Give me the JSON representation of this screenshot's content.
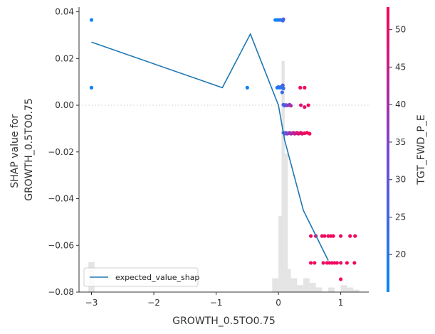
{
  "chart_data": {
    "type": "scatter",
    "xlabel": "GROWTH_0.5TO0.75",
    "ylabel_lines": [
      "SHAP value for",
      "GROWTH_0.5TO0.75"
    ],
    "xlim": [
      -3.2,
      1.45
    ],
    "ylim": [
      -0.08,
      0.042
    ],
    "x_ticks": [
      -3,
      -2,
      -1,
      0,
      1
    ],
    "x_tick_labels": [
      "−3",
      "−2",
      "−1",
      "0",
      "1"
    ],
    "y_ticks": [
      0.04,
      0.02,
      0.0,
      -0.02,
      -0.04,
      -0.06,
      -0.08
    ],
    "y_tick_labels": [
      "0.04",
      "0.02",
      "0.00",
      "−0.02",
      "−0.04",
      "−0.06",
      "−0.08"
    ],
    "zero_line": true,
    "colorbar": {
      "label": "TGT_FWD_P_E",
      "range": [
        15,
        53
      ],
      "ticks": [
        20,
        25,
        30,
        35,
        40,
        45,
        50
      ],
      "tick_labels": [
        "20",
        "25",
        "30",
        "35",
        "40",
        "45",
        "50"
      ],
      "color_low": "#008afb",
      "color_high": "#ff0052"
    },
    "legend": {
      "placement": "lower-left",
      "entries": [
        "expected_value_shap"
      ]
    },
    "series": [
      {
        "name": "expected_value_shap",
        "kind": "line",
        "color": "#1f77b4",
        "x": [
          -3.0,
          -0.9,
          -0.45,
          0.0,
          0.1,
          0.4,
          0.8
        ],
        "y": [
          0.027,
          0.0075,
          0.0305,
          0.0,
          -0.015,
          -0.045,
          -0.0665
        ]
      }
    ],
    "histogram": {
      "color": "#e4e4e4",
      "bins": [
        {
          "x0": -3.05,
          "x1": -2.95,
          "count": 0.13
        },
        {
          "x0": -0.1,
          "x1": 0.0,
          "count": 0.06
        },
        {
          "x0": 0.0,
          "x1": 0.05,
          "count": 0.33
        },
        {
          "x0": 0.05,
          "x1": 0.1,
          "count": 1.0
        },
        {
          "x0": 0.1,
          "x1": 0.15,
          "count": 0.6
        },
        {
          "x0": 0.15,
          "x1": 0.2,
          "count": 0.1
        },
        {
          "x0": 0.2,
          "x1": 0.3,
          "count": 0.06
        },
        {
          "x0": 0.3,
          "x1": 0.4,
          "count": 0.03
        },
        {
          "x0": 0.4,
          "x1": 0.5,
          "count": 0.06
        },
        {
          "x0": 0.5,
          "x1": 0.6,
          "count": 0.04
        },
        {
          "x0": 0.6,
          "x1": 0.7,
          "count": 0.02
        },
        {
          "x0": 0.8,
          "x1": 0.9,
          "count": 0.02
        },
        {
          "x0": 1.0,
          "x1": 1.1,
          "count": 0.03
        },
        {
          "x0": 1.1,
          "x1": 1.2,
          "count": 0.02
        },
        {
          "x0": 1.2,
          "x1": 1.3,
          "count": 0.01
        }
      ]
    },
    "points": [
      {
        "x": -3.0,
        "y": 0.0365,
        "c": 17
      },
      {
        "x": -3.0,
        "y": 0.0075,
        "c": 17
      },
      {
        "x": -0.5,
        "y": 0.0075,
        "c": 17
      },
      {
        "x": -0.05,
        "y": 0.0365,
        "c": 17
      },
      {
        "x": -0.02,
        "y": 0.0365,
        "c": 18
      },
      {
        "x": 0.0,
        "y": 0.0365,
        "c": 19
      },
      {
        "x": 0.02,
        "y": 0.0365,
        "c": 19
      },
      {
        "x": 0.04,
        "y": 0.0365,
        "c": 20
      },
      {
        "x": 0.06,
        "y": 0.0365,
        "c": 21
      },
      {
        "x": 0.08,
        "y": 0.0368,
        "c": 30
      },
      {
        "x": 0.07,
        "y": 0.0362,
        "c": 24
      },
      {
        "x": -0.02,
        "y": 0.0075,
        "c": 18
      },
      {
        "x": 0.0,
        "y": 0.0078,
        "c": 20
      },
      {
        "x": 0.02,
        "y": 0.0075,
        "c": 21
      },
      {
        "x": 0.04,
        "y": 0.0078,
        "c": 22
      },
      {
        "x": 0.06,
        "y": 0.0075,
        "c": 23
      },
      {
        "x": 0.08,
        "y": 0.0072,
        "c": 22
      },
      {
        "x": 0.06,
        "y": 0.0055,
        "c": 24
      },
      {
        "x": 0.07,
        "y": 0.0085,
        "c": 26
      },
      {
        "x": 0.35,
        "y": 0.0075,
        "c": 50
      },
      {
        "x": 0.42,
        "y": 0.0075,
        "c": 52
      },
      {
        "x": 0.08,
        "y": 0.0002,
        "c": 27
      },
      {
        "x": 0.1,
        "y": -0.0002,
        "c": 28
      },
      {
        "x": 0.12,
        "y": 0.0001,
        "c": 30
      },
      {
        "x": 0.14,
        "y": -0.0001,
        "c": 33
      },
      {
        "x": 0.16,
        "y": 0.0,
        "c": 35
      },
      {
        "x": 0.18,
        "y": 0.0002,
        "c": 38
      },
      {
        "x": 0.2,
        "y": -0.0002,
        "c": 40
      },
      {
        "x": 0.36,
        "y": 0.0,
        "c": 48
      },
      {
        "x": 0.42,
        "y": -0.0008,
        "c": 50
      },
      {
        "x": 0.48,
        "y": 0.0,
        "c": 52
      },
      {
        "x": 0.08,
        "y": -0.0118,
        "c": 27
      },
      {
        "x": 0.1,
        "y": -0.0122,
        "c": 29
      },
      {
        "x": 0.12,
        "y": -0.0118,
        "c": 31
      },
      {
        "x": 0.14,
        "y": -0.0122,
        "c": 34
      },
      {
        "x": 0.16,
        "y": -0.012,
        "c": 36
      },
      {
        "x": 0.18,
        "y": -0.0118,
        "c": 38
      },
      {
        "x": 0.2,
        "y": -0.0122,
        "c": 40
      },
      {
        "x": 0.22,
        "y": -0.012,
        "c": 41
      },
      {
        "x": 0.24,
        "y": -0.0118,
        "c": 43
      },
      {
        "x": 0.26,
        "y": -0.0122,
        "c": 44
      },
      {
        "x": 0.28,
        "y": -0.012,
        "c": 45
      },
      {
        "x": 0.3,
        "y": -0.0118,
        "c": 46
      },
      {
        "x": 0.32,
        "y": -0.0122,
        "c": 47
      },
      {
        "x": 0.34,
        "y": -0.012,
        "c": 48
      },
      {
        "x": 0.36,
        "y": -0.0118,
        "c": 49
      },
      {
        "x": 0.38,
        "y": -0.0122,
        "c": 50
      },
      {
        "x": 0.42,
        "y": -0.012,
        "c": 51
      },
      {
        "x": 0.46,
        "y": -0.0118,
        "c": 52
      },
      {
        "x": 0.5,
        "y": -0.0122,
        "c": 52
      },
      {
        "x": 0.52,
        "y": -0.056,
        "c": 50
      },
      {
        "x": 0.6,
        "y": -0.056,
        "c": 51
      },
      {
        "x": 0.7,
        "y": -0.056,
        "c": 50
      },
      {
        "x": 0.74,
        "y": -0.056,
        "c": 52
      },
      {
        "x": 0.8,
        "y": -0.056,
        "c": 50
      },
      {
        "x": 0.84,
        "y": -0.056,
        "c": 51
      },
      {
        "x": 0.88,
        "y": -0.056,
        "c": 52
      },
      {
        "x": 1.0,
        "y": -0.056,
        "c": 50
      },
      {
        "x": 1.15,
        "y": -0.056,
        "c": 51
      },
      {
        "x": 1.23,
        "y": -0.056,
        "c": 52
      },
      {
        "x": 0.52,
        "y": -0.0675,
        "c": 52
      },
      {
        "x": 0.58,
        "y": -0.0675,
        "c": 51
      },
      {
        "x": 0.72,
        "y": -0.0675,
        "c": 50
      },
      {
        "x": 0.78,
        "y": -0.0675,
        "c": 52
      },
      {
        "x": 0.82,
        "y": -0.0675,
        "c": 51
      },
      {
        "x": 0.86,
        "y": -0.0675,
        "c": 50
      },
      {
        "x": 0.9,
        "y": -0.0675,
        "c": 52
      },
      {
        "x": 0.94,
        "y": -0.0675,
        "c": 51
      },
      {
        "x": 1.0,
        "y": -0.0675,
        "c": 50
      },
      {
        "x": 1.1,
        "y": -0.0675,
        "c": 52
      },
      {
        "x": 1.22,
        "y": -0.0675,
        "c": 51
      },
      {
        "x": 1.0,
        "y": -0.0745,
        "c": 52
      }
    ]
  }
}
